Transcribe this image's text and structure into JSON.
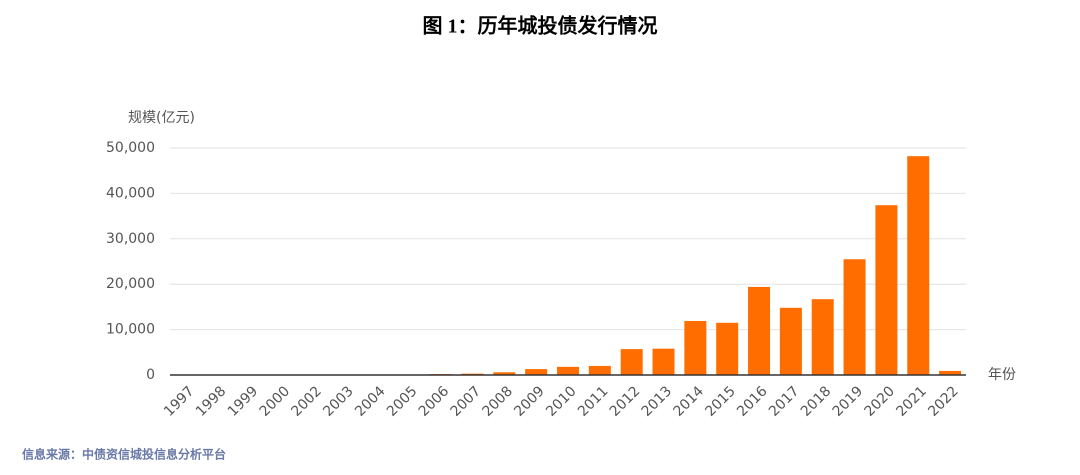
{
  "chart_data": {
    "type": "bar",
    "title": "图 1：历年城投债发行情况",
    "y_label": "规模(亿元)",
    "x_label": "年份",
    "source": "信息来源：中债资信城投信息分析平台",
    "categories": [
      "1997",
      "1998",
      "1999",
      "2000",
      "2002",
      "2003",
      "2004",
      "2005",
      "2006",
      "2007",
      "2008",
      "2009",
      "2010",
      "2011",
      "2012",
      "2013",
      "2014",
      "2015",
      "2016",
      "2017",
      "2018",
      "2019",
      "2020",
      "2021",
      "2022"
    ],
    "values": [
      10,
      50,
      20,
      20,
      30,
      100,
      100,
      100,
      200,
      300,
      600,
      1300,
      1800,
      2000,
      5700,
      5800,
      11900,
      11500,
      19400,
      14800,
      16700,
      25500,
      37400,
      48200,
      900
    ],
    "color": "#ff6d00",
    "ylim": [
      0,
      50000
    ],
    "yticks": [
      0,
      {
        "value": 10000,
        "label": "10,000"
      },
      {
        "value": 20000,
        "label": "20,000"
      },
      {
        "value": 30000,
        "label": "30,000"
      },
      {
        "value": 40000,
        "label": "40,000"
      },
      {
        "value": 50000,
        "label": "50,000"
      }
    ],
    "grid": true
  }
}
